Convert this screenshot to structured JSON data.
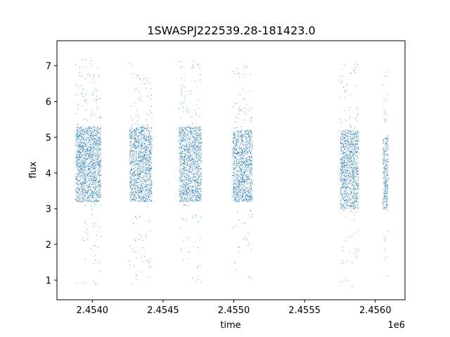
{
  "chart_data": {
    "type": "scatter",
    "title": "1SWASPJ222539.28-181423.0",
    "xlabel": "time",
    "ylabel": "flux",
    "x_offset_label": "1e6",
    "x_scale": 1000000,
    "xlim": [
      2453750,
      2456210
    ],
    "ylim": [
      0.45,
      7.7
    ],
    "xticks": [
      2454000,
      2454500,
      2455000,
      2455500,
      2456000
    ],
    "xtick_labels": [
      "2.4540",
      "2.4545",
      "2.4550",
      "2.4555",
      "2.4560"
    ],
    "yticks": [
      1,
      2,
      3,
      4,
      5,
      6,
      7
    ],
    "ytick_labels": [
      "1",
      "2",
      "3",
      "4",
      "5",
      "6",
      "7"
    ],
    "grid": false,
    "legend": "none",
    "marker_color": "#1f77b4",
    "clusters": [
      {
        "x_start": 2453880,
        "x_end": 2454060,
        "y_low": 3.2,
        "y_high": 5.3,
        "count": 1600
      },
      {
        "x_start": 2454260,
        "x_end": 2454420,
        "y_low": 3.2,
        "y_high": 5.3,
        "count": 1300
      },
      {
        "x_start": 2454610,
        "x_end": 2454770,
        "y_low": 3.2,
        "y_high": 5.3,
        "count": 1300
      },
      {
        "x_start": 2454990,
        "x_end": 2455130,
        "y_low": 3.2,
        "y_high": 5.2,
        "count": 1100
      },
      {
        "x_start": 2455750,
        "x_end": 2455880,
        "y_low": 3.0,
        "y_high": 5.2,
        "count": 1100
      },
      {
        "x_start": 2456050,
        "x_end": 2456090,
        "y_low": 3.0,
        "y_high": 5.0,
        "count": 300
      }
    ]
  }
}
